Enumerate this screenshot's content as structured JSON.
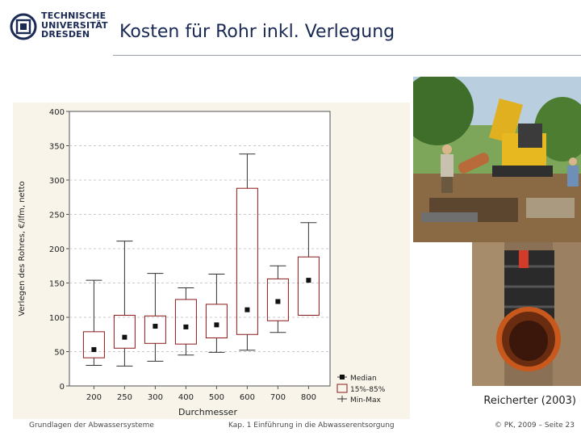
{
  "header": {
    "logo_lines": [
      "TECHNISCHE",
      "UNIVERSITÄT",
      "DRESDEN"
    ],
    "title": "Kosten für Rohr inkl. Verlegung"
  },
  "citation": "Reicherter (2003)",
  "footer": {
    "left": "Grundlagen der Abwassersysteme",
    "middle": "Kap. 1 Einführung in die Abwasserentsorgung",
    "right": "© PK, 2009 – Seite 23"
  },
  "colors": {
    "brand": "#1a2a55",
    "box_outline": "#8b1a1a",
    "chart_background": "#f8f4ea",
    "grid": "#c8c8c8"
  },
  "photos": [
    {
      "name": "excavator-pipe-laying-photo"
    },
    {
      "name": "orange-pipe-in-trench-photo"
    }
  ],
  "chart_data": {
    "type": "box",
    "xlabel": "Durchmesser",
    "ylabel": "Verlegen des Rohres, €/lfm, netto",
    "ylim": [
      0,
      400
    ],
    "yticks": [
      0,
      50,
      100,
      150,
      200,
      250,
      300,
      350,
      400
    ],
    "grid": true,
    "legend_position": "bottom-right",
    "legend": [
      "Median",
      "15%-85%",
      "Min-Max"
    ],
    "categories": [
      "200",
      "250",
      "300",
      "400",
      "500",
      "600",
      "700",
      "800"
    ],
    "median": [
      53,
      71,
      87,
      86,
      89,
      111,
      123,
      154
    ],
    "q15": [
      41,
      55,
      62,
      61,
      70,
      75,
      95,
      103
    ],
    "q85": [
      79,
      103,
      102,
      126,
      119,
      288,
      156,
      188
    ],
    "min": [
      30,
      29,
      36,
      45,
      49,
      52,
      78,
      103
    ],
    "max": [
      154,
      211,
      164,
      143,
      163,
      338,
      175,
      238
    ]
  }
}
